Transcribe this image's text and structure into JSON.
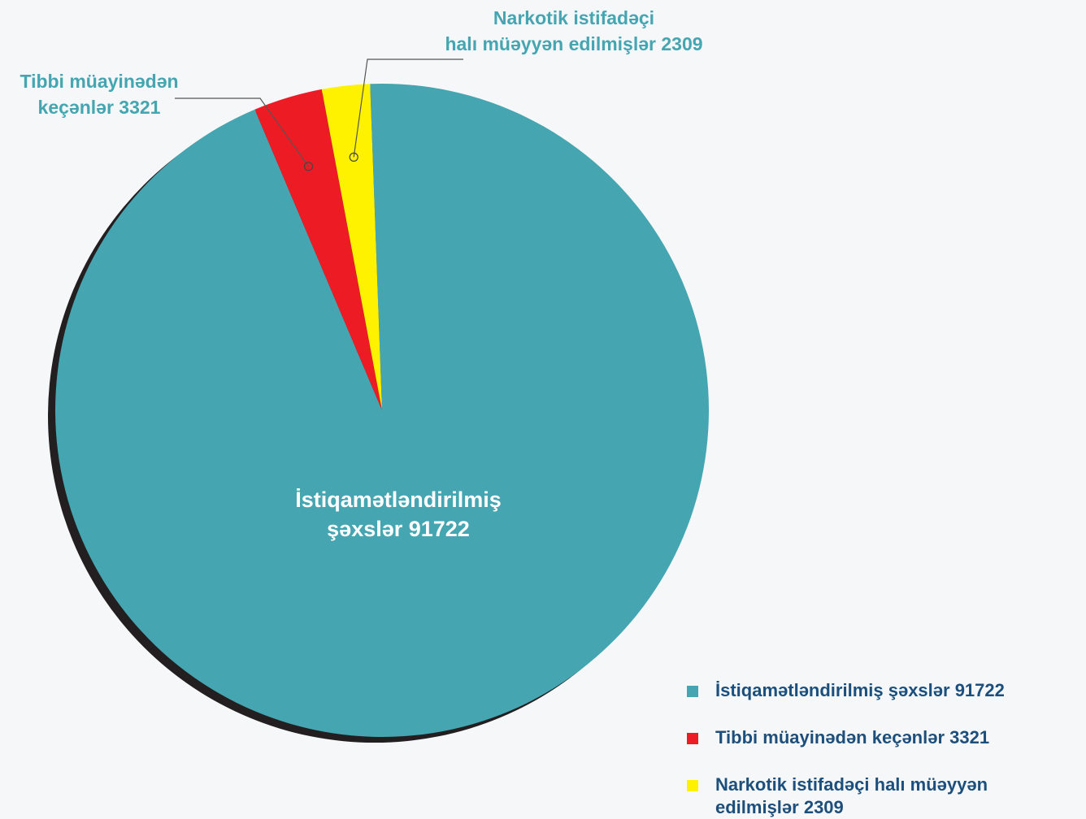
{
  "chart_data": {
    "type": "pie",
    "categories": [
      "İstiqamətləndirilmiş şəxslər 91722",
      "Tibbi müayinədən keçənlər 3321",
      "Narkotik istifadəçi halı müəyyən edilmişlər 2309"
    ],
    "values": [
      91722,
      3321,
      2309
    ],
    "colors": [
      "#45a5b0",
      "#ed1c24",
      "#fff200"
    ],
    "slice_labels": [
      [
        "İstiqamətləndirilmiş",
        "şəxslər 91722"
      ],
      [
        "Tibbi müayinədən",
        "keçənlər 3321"
      ],
      [
        "Narkotik istifadəçi",
        "halı müəyyən edilmişlər 2309"
      ]
    ],
    "legend": "bottom-right"
  }
}
